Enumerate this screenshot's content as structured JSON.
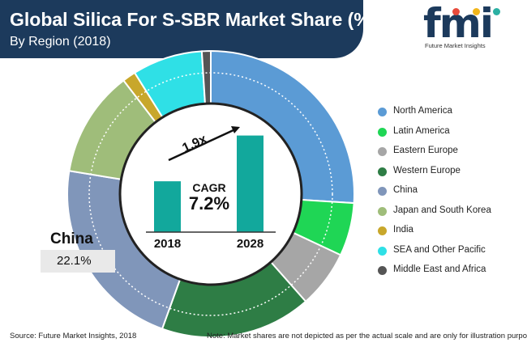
{
  "header": {
    "title": "Global Silica For S-SBR Market Share (%)",
    "subtitle": "By Region (2018)"
  },
  "logo": {
    "text": "fmi",
    "tagline": "Future Market Insights",
    "dot_colors": [
      "#e84b3c",
      "#f2b61b",
      "#2bb0a3"
    ]
  },
  "chart_data": [
    {
      "type": "pie",
      "variant": "donut",
      "title": "",
      "categories": [
        "North America",
        "Latin America",
        "Eastern Europe",
        "Western Europe",
        "China",
        "Japan and South Korea",
        "India",
        "SEA and Other Pacific",
        "Middle East and Africa"
      ],
      "values": [
        26.0,
        6.0,
        6.5,
        17.0,
        22.1,
        12.0,
        1.5,
        7.9,
        1.0
      ],
      "colors": [
        "#5b9bd5",
        "#1fd655",
        "#a6a6a6",
        "#2e7d45",
        "#8096ba",
        "#9fbd7a",
        "#c8a72b",
        "#2fe0e6",
        "#555555"
      ],
      "start_angle_deg": 0,
      "direction": "clockwise",
      "legend": "right",
      "highlight": {
        "category": "China",
        "label": "China",
        "value_label": "22.1%"
      }
    },
    {
      "type": "bar",
      "categories": [
        "2018",
        "2028"
      ],
      "values": [
        1.0,
        1.9
      ],
      "ylim": [
        0,
        2.1
      ],
      "color": "#12a89c",
      "annotation": "1.9x",
      "cagr_label": "CAGR",
      "cagr_value": "7.2%"
    }
  ],
  "footer": {
    "source": "Source: Future Market Insights, 2018",
    "note": "Note: Market shares are not depicted as per the actual scale and are only for illustration purposes."
  }
}
